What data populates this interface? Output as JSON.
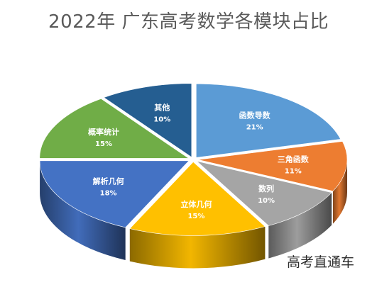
{
  "chart_data": {
    "type": "pie",
    "title": "2022年 广东高考数学各模块占比",
    "categories": [
      "函数导数",
      "三角函数",
      "数列",
      "立体几何",
      "解析几何",
      "概率统计",
      "其他"
    ],
    "values": [
      21,
      11,
      10,
      15,
      18,
      15,
      10
    ],
    "value_labels": [
      "21%",
      "11%",
      "10%",
      "15%",
      "18%",
      "15%",
      "10%"
    ],
    "colors": [
      "#5b9bd5",
      "#ed7d31",
      "#a5a5a5",
      "#ffc000",
      "#4472c4",
      "#70ad47",
      "#255e91"
    ],
    "style": "3d-exploded"
  },
  "watermark": "高考直通车"
}
